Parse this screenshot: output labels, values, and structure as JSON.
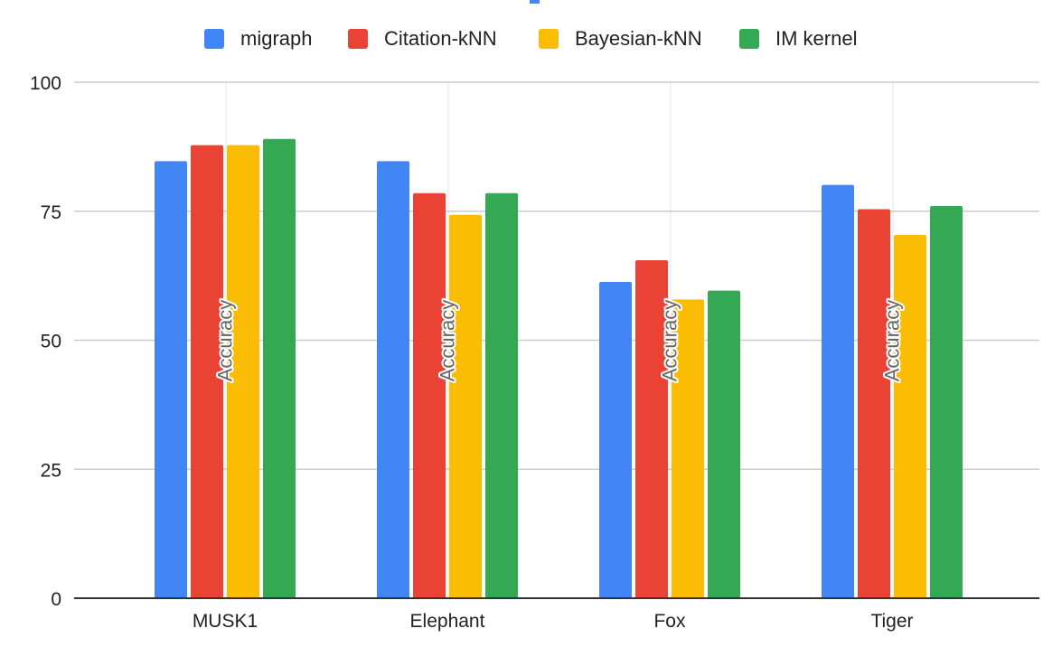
{
  "chart_data": {
    "type": "bar",
    "categories": [
      "MUSK1",
      "Elephant",
      "Fox",
      "Tiger"
    ],
    "series": [
      {
        "name": "migraph",
        "color": "#4285F4",
        "values": [
          84.7,
          84.7,
          61.3,
          80.1
        ]
      },
      {
        "name": "Citation-kNN",
        "color": "#EA4335",
        "values": [
          87.8,
          78.5,
          65.5,
          75.4
        ]
      },
      {
        "name": "Bayesian-kNN",
        "color": "#FBBC04",
        "values": [
          87.8,
          74.3,
          57.9,
          70.4
        ]
      },
      {
        "name": "IM kernel",
        "color": "#34A853",
        "values": [
          89.0,
          78.5,
          59.6,
          76.0
        ]
      }
    ],
    "bar_annotation": "Accuracy",
    "yticks": [
      0,
      25,
      50,
      75,
      100
    ],
    "ylim": [
      0,
      100
    ],
    "grid": true,
    "legend_position": "top"
  }
}
